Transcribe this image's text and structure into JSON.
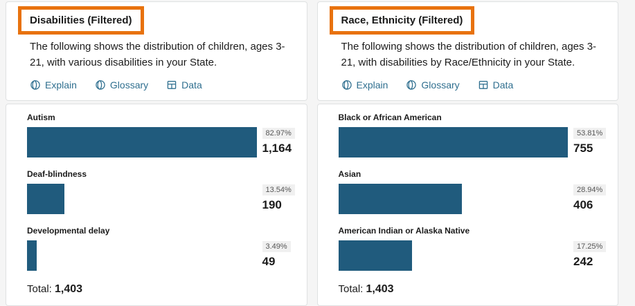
{
  "colors": {
    "page_background": "#f5f5f5",
    "card_background": "#ffffff",
    "card_border": "#dfe1e2",
    "accent_orange": "#e8720d",
    "bar_color": "#205b7d",
    "link_color": "#2f6f8f",
    "badge_background": "#f0f0f0"
  },
  "panels": [
    {
      "title": "Disabilities (Filtered)",
      "description": "The following shows the distribution of children, ages 3-21, with various disabilities in your State.",
      "actions": {
        "explain": "Explain",
        "glossary": "Glossary",
        "data": "Data"
      },
      "bars": [
        {
          "label": "Autism",
          "percent": "82.97%",
          "value": "1,164"
        },
        {
          "label": "Deaf-blindness",
          "percent": "13.54%",
          "value": "190"
        },
        {
          "label": "Developmental delay",
          "percent": "3.49%",
          "value": "49"
        }
      ],
      "total_label": "Total:",
      "total_value": "1,403"
    },
    {
      "title": "Race, Ethnicity (Filtered)",
      "description": "The following shows the distribution of children, ages 3-21, with disabilities by Race/Ethnicity in your State.",
      "actions": {
        "explain": "Explain",
        "glossary": "Glossary",
        "data": "Data"
      },
      "bars": [
        {
          "label": "Black or African American",
          "percent": "53.81%",
          "value": "755"
        },
        {
          "label": "Asian",
          "percent": "28.94%",
          "value": "406"
        },
        {
          "label": "American Indian or Alaska Native",
          "percent": "17.25%",
          "value": "242"
        }
      ],
      "total_label": "Total:",
      "total_value": "1,403"
    }
  ],
  "chart_data": [
    {
      "type": "bar",
      "orientation": "horizontal",
      "title": "Disabilities (Filtered)",
      "categories": [
        "Autism",
        "Deaf-blindness",
        "Developmental delay"
      ],
      "values": [
        1164,
        190,
        49
      ],
      "percents": [
        82.97,
        13.54,
        3.49
      ],
      "total": 1403,
      "bar_color": "#205b7d",
      "value_labels": [
        "1,164",
        "190",
        "49"
      ],
      "note": "bar lengths scaled relative to max category value; grid off; no axes shown"
    },
    {
      "type": "bar",
      "orientation": "horizontal",
      "title": "Race, Ethnicity (Filtered)",
      "categories": [
        "Black or African American",
        "Asian",
        "American Indian or Alaska Native"
      ],
      "values": [
        755,
        406,
        242
      ],
      "percents": [
        53.81,
        28.94,
        17.25
      ],
      "total": 1403,
      "bar_color": "#205b7d",
      "value_labels": [
        "755",
        "406",
        "242"
      ],
      "note": "bar lengths scaled relative to max category value; grid off; no axes shown"
    }
  ]
}
